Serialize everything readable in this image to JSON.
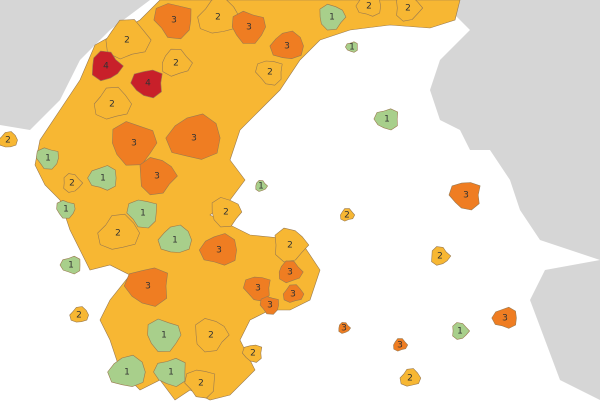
{
  "regions": [
    {
      "label": "2",
      "color": "#f7b733"
    },
    {
      "label": "3",
      "color": "#ef7d22"
    },
    {
      "label": "2",
      "color": "#f7b733"
    },
    {
      "label": "3",
      "color": "#ef7d22"
    },
    {
      "label": "3",
      "color": "#ef7d22"
    },
    {
      "label": "1",
      "color": "#a8cf8b"
    },
    {
      "label": "2",
      "color": "#f7b733"
    },
    {
      "label": "2",
      "color": "#f7b733"
    },
    {
      "label": "1",
      "color": "#a8cf8b"
    },
    {
      "label": "4",
      "color": "#c8202a"
    },
    {
      "label": "4",
      "color": "#c8202a"
    },
    {
      "label": "2",
      "color": "#f7b733"
    },
    {
      "label": "2",
      "color": "#f7b733"
    },
    {
      "label": "2",
      "color": "#f7b733"
    },
    {
      "label": "1",
      "color": "#a8cf8b"
    },
    {
      "label": "2",
      "color": "#f7b733"
    },
    {
      "label": "3",
      "color": "#ef7d22"
    },
    {
      "label": "3",
      "color": "#ef7d22"
    },
    {
      "label": "3",
      "color": "#ef7d22"
    },
    {
      "label": "1",
      "color": "#a8cf8b"
    },
    {
      "label": "2",
      "color": "#f7b733"
    },
    {
      "label": "1",
      "color": "#a8cf8b"
    },
    {
      "label": "1",
      "color": "#a8cf8b"
    },
    {
      "label": "3",
      "color": "#ef7d22"
    },
    {
      "label": "2",
      "color": "#f7b733"
    },
    {
      "label": "1",
      "color": "#a8cf8b"
    },
    {
      "label": "2",
      "color": "#f7b733"
    },
    {
      "label": "1",
      "color": "#a8cf8b"
    },
    {
      "label": "1",
      "color": "#a8cf8b"
    },
    {
      "label": "2",
      "color": "#f7b733"
    },
    {
      "label": "3",
      "color": "#ef7d22"
    },
    {
      "label": "2",
      "color": "#f7b733"
    },
    {
      "label": "1",
      "color": "#a8cf8b"
    },
    {
      "label": "2",
      "color": "#f7b733"
    },
    {
      "label": "3",
      "color": "#ef7d22"
    },
    {
      "label": "3",
      "color": "#ef7d22"
    },
    {
      "label": "3",
      "color": "#ef7d22"
    },
    {
      "label": "3",
      "color": "#ef7d22"
    },
    {
      "label": "3",
      "color": "#ef7d22"
    },
    {
      "label": "2",
      "color": "#f7b733"
    },
    {
      "label": "1",
      "color": "#a8cf8b"
    },
    {
      "label": "1",
      "color": "#a8cf8b"
    },
    {
      "label": "2",
      "color": "#f7b733"
    },
    {
      "label": "3",
      "color": "#ef7d22"
    },
    {
      "label": "1",
      "color": "#a8cf8b"
    },
    {
      "label": "1",
      "color": "#a8cf8b"
    },
    {
      "label": "3",
      "color": "#ef7d22"
    },
    {
      "label": "2",
      "color": "#f7b733"
    },
    {
      "label": "3",
      "color": "#ef7d22"
    },
    {
      "label": "2",
      "color": "#f7b733"
    },
    {
      "label": "2",
      "color": "#f7b733"
    }
  ]
}
